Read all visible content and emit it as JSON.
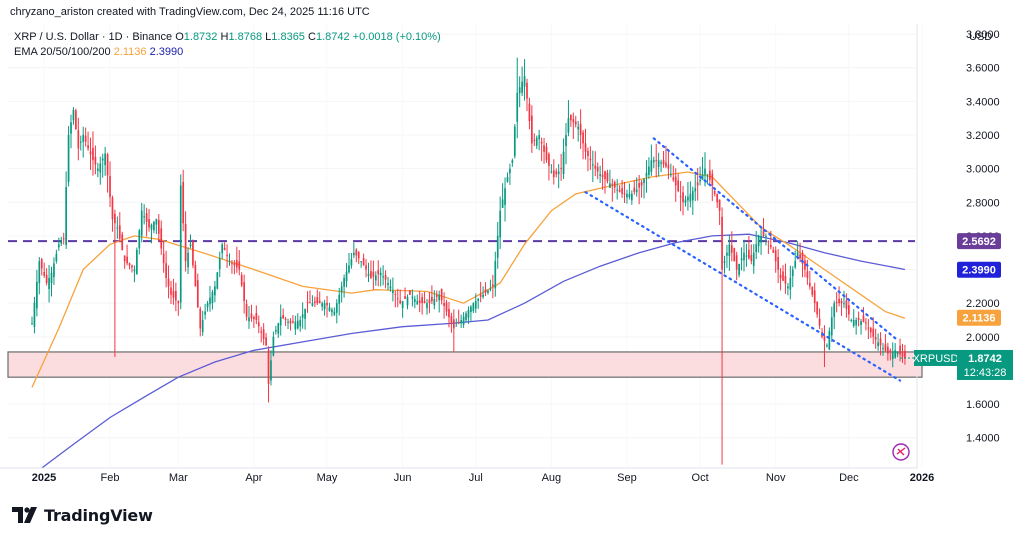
{
  "header": {
    "credit": "chryzano_ariston created with TradingView.com, Dec 24, 2025 11:16 UTC"
  },
  "legend": {
    "symbol": "XRP / U.S. Dollar · 1D · Binance",
    "open_label": "O",
    "open": "1.8732",
    "high_label": "H",
    "high": "1.8768",
    "low_label": "L",
    "low": "1.8365",
    "close_label": "C",
    "close": "1.8742",
    "change": "+0.0018 (+0.10%)",
    "ema_label": "EMA 20/50/100/200",
    "ema_a": "2.1136",
    "ema_b": "2.3990"
  },
  "footer": {
    "brand": "TradingView"
  },
  "colors": {
    "up": "#089981",
    "down": "#f23645",
    "ema_fast": "#f7a23c",
    "ema_slow": "#5b5bd6",
    "resistance": "#5b3aa5",
    "support_fill": "#fbdde0",
    "channel": "#2962ff",
    "price_box": "#089981",
    "ema_fast_box": "#f7a23c",
    "ema_slow_box": "#2121d9",
    "resistance_box": "#6a3d9a"
  },
  "chart_data": {
    "type": "candlestick",
    "currency": "USD",
    "y_ticks": [
      "1.4000",
      "1.6000",
      "2.0000",
      "2.2000",
      "2.4000",
      "2.6000",
      "2.8000",
      "3.0000",
      "3.2000",
      "3.4000",
      "3.6000",
      "3.8000"
    ],
    "x_ticks": [
      "2025",
      "Feb",
      "Mar",
      "Apr",
      "May",
      "Jun",
      "Jul",
      "Aug",
      "Sep",
      "Oct",
      "Nov",
      "Dec",
      "2026"
    ],
    "ylim": [
      1.22,
      3.86
    ],
    "last_price": {
      "label": "XRPUSD",
      "value": "1.8742",
      "countdown": "12:43:28"
    },
    "resistance": {
      "value": 2.5692,
      "label": "2.5692"
    },
    "ema_fast_last": {
      "value": 2.1136,
      "label": "2.1136"
    },
    "ema_slow_last": {
      "value": 2.399,
      "label": "2.3990"
    },
    "support_zone": [
      1.76,
      1.91
    ],
    "descending_channel": {
      "upper": [
        [
          "2025-09-12",
          3.18
        ],
        [
          "2025-12-21",
          1.98
        ]
      ],
      "lower": [
        [
          "2025-08-15",
          2.86
        ],
        [
          "2025-12-22",
          1.74
        ]
      ]
    },
    "price_path": [
      [
        "2024-12-31",
        2.08
      ],
      [
        "2025-01-03",
        2.45
      ],
      [
        "2025-01-06",
        2.32
      ],
      [
        "2025-01-08",
        2.38
      ],
      [
        "2025-01-11",
        2.55
      ],
      [
        "2025-01-13",
        2.58
      ],
      [
        "2025-01-15",
        3.2
      ],
      [
        "2025-01-17",
        3.35
      ],
      [
        "2025-01-19",
        3.12
      ],
      [
        "2025-01-21",
        3.2
      ],
      [
        "2025-01-23",
        3.12
      ],
      [
        "2025-01-25",
        3.05
      ],
      [
        "2025-01-27",
        3.0
      ],
      [
        "2025-01-30",
        3.09
      ],
      [
        "2025-02-02",
        2.7
      ],
      [
        "2025-02-04",
        2.65
      ],
      [
        "2025-02-07",
        2.45
      ],
      [
        "2025-02-11",
        2.4
      ],
      [
        "2025-02-14",
        2.75
      ],
      [
        "2025-02-17",
        2.65
      ],
      [
        "2025-02-20",
        2.7
      ],
      [
        "2025-02-24",
        2.35
      ],
      [
        "2025-02-26",
        2.25
      ],
      [
        "2025-03-01",
        2.2
      ],
      [
        "2025-03-02",
        2.9
      ],
      [
        "2025-03-04",
        2.45
      ],
      [
        "2025-03-06",
        2.55
      ],
      [
        "2025-03-10",
        2.05
      ],
      [
        "2025-03-13",
        2.2
      ],
      [
        "2025-03-16",
        2.3
      ],
      [
        "2025-03-19",
        2.55
      ],
      [
        "2025-03-22",
        2.45
      ],
      [
        "2025-03-26",
        2.4
      ],
      [
        "2025-03-29",
        2.12
      ],
      [
        "2025-04-02",
        2.1
      ],
      [
        "2025-04-06",
        1.95
      ],
      [
        "2025-04-07",
        1.72
      ],
      [
        "2025-04-09",
        2.0
      ],
      [
        "2025-04-12",
        2.12
      ],
      [
        "2025-04-16",
        2.08
      ],
      [
        "2025-04-20",
        2.1
      ],
      [
        "2025-04-23",
        2.2
      ],
      [
        "2025-04-26",
        2.2
      ],
      [
        "2025-04-30",
        2.2
      ],
      [
        "2025-05-04",
        2.15
      ],
      [
        "2025-05-08",
        2.35
      ],
      [
        "2025-05-12",
        2.5
      ],
      [
        "2025-05-15",
        2.45
      ],
      [
        "2025-05-19",
        2.35
      ],
      [
        "2025-05-23",
        2.38
      ],
      [
        "2025-05-27",
        2.3
      ],
      [
        "2025-05-31",
        2.2
      ],
      [
        "2025-06-04",
        2.25
      ],
      [
        "2025-06-08",
        2.2
      ],
      [
        "2025-06-12",
        2.2
      ],
      [
        "2025-06-16",
        2.25
      ],
      [
        "2025-06-19",
        2.15
      ],
      [
        "2025-06-22",
        2.05
      ],
      [
        "2025-06-25",
        2.1
      ],
      [
        "2025-06-30",
        2.2
      ],
      [
        "2025-07-04",
        2.25
      ],
      [
        "2025-07-08",
        2.3
      ],
      [
        "2025-07-11",
        2.75
      ],
      [
        "2025-07-14",
        2.95
      ],
      [
        "2025-07-16",
        3.05
      ],
      [
        "2025-07-18",
        3.45
      ],
      [
        "2025-07-21",
        3.55
      ],
      [
        "2025-07-24",
        3.15
      ],
      [
        "2025-07-27",
        3.2
      ],
      [
        "2025-07-30",
        3.05
      ],
      [
        "2025-08-02",
        2.95
      ],
      [
        "2025-08-05",
        3.0
      ],
      [
        "2025-08-08",
        3.3
      ],
      [
        "2025-08-12",
        3.25
      ],
      [
        "2025-08-15",
        3.1
      ],
      [
        "2025-08-19",
        3.0
      ],
      [
        "2025-08-22",
        2.95
      ],
      [
        "2025-08-26",
        2.9
      ],
      [
        "2025-08-30",
        2.85
      ],
      [
        "2025-09-03",
        2.85
      ],
      [
        "2025-09-07",
        2.9
      ],
      [
        "2025-09-11",
        3.05
      ],
      [
        "2025-09-14",
        3.05
      ],
      [
        "2025-09-18",
        3.0
      ],
      [
        "2025-09-21",
        2.9
      ],
      [
        "2025-09-24",
        2.8
      ],
      [
        "2025-09-27",
        2.85
      ],
      [
        "2025-09-30",
        2.9
      ],
      [
        "2025-10-03",
        3.0
      ],
      [
        "2025-10-06",
        2.9
      ],
      [
        "2025-10-09",
        2.75
      ],
      [
        "2025-10-10",
        2.4
      ],
      [
        "2025-10-13",
        2.55
      ],
      [
        "2025-10-16",
        2.4
      ],
      [
        "2025-10-19",
        2.5
      ],
      [
        "2025-10-22",
        2.45
      ],
      [
        "2025-10-25",
        2.6
      ],
      [
        "2025-10-28",
        2.6
      ],
      [
        "2025-10-31",
        2.5
      ],
      [
        "2025-11-03",
        2.35
      ],
      [
        "2025-11-06",
        2.3
      ],
      [
        "2025-11-10",
        2.5
      ],
      [
        "2025-11-13",
        2.4
      ],
      [
        "2025-11-17",
        2.2
      ],
      [
        "2025-11-20",
        2.0
      ],
      [
        "2025-11-22",
        1.95
      ],
      [
        "2025-11-25",
        2.2
      ],
      [
        "2025-11-29",
        2.2
      ],
      [
        "2025-12-02",
        2.1
      ],
      [
        "2025-12-05",
        2.1
      ],
      [
        "2025-12-08",
        2.08
      ],
      [
        "2025-12-11",
        2.0
      ],
      [
        "2025-12-14",
        1.95
      ],
      [
        "2025-12-17",
        1.9
      ],
      [
        "2025-12-20",
        1.92
      ],
      [
        "2025-12-24",
        1.87
      ]
    ],
    "wicks": [
      {
        "date": "2025-02-03",
        "low": 1.88
      },
      {
        "date": "2025-04-07",
        "low": 1.61
      },
      {
        "date": "2025-06-22",
        "low": 1.91
      },
      {
        "date": "2025-07-18",
        "high": 3.66
      },
      {
        "date": "2025-10-10",
        "low": 1.24
      },
      {
        "date": "2025-11-21",
        "low": 1.82
      }
    ],
    "ema_fast_path": [
      [
        "2024-12-31",
        1.7
      ],
      [
        "2025-01-11",
        2.05
      ],
      [
        "2025-01-21",
        2.4
      ],
      [
        "2025-02-01",
        2.55
      ],
      [
        "2025-02-11",
        2.6
      ],
      [
        "2025-02-21",
        2.58
      ],
      [
        "2025-03-11",
        2.5
      ],
      [
        "2025-04-01",
        2.4
      ],
      [
        "2025-04-21",
        2.3
      ],
      [
        "2025-05-11",
        2.26
      ],
      [
        "2025-05-21",
        2.28
      ],
      [
        "2025-06-11",
        2.27
      ],
      [
        "2025-06-26",
        2.2
      ],
      [
        "2025-07-11",
        2.32
      ],
      [
        "2025-07-21",
        2.55
      ],
      [
        "2025-08-01",
        2.75
      ],
      [
        "2025-08-11",
        2.85
      ],
      [
        "2025-08-26",
        2.9
      ],
      [
        "2025-09-11",
        2.95
      ],
      [
        "2025-09-26",
        2.98
      ],
      [
        "2025-10-06",
        2.95
      ],
      [
        "2025-10-16",
        2.8
      ],
      [
        "2025-10-26",
        2.65
      ],
      [
        "2025-11-06",
        2.55
      ],
      [
        "2025-11-16",
        2.45
      ],
      [
        "2025-11-26",
        2.35
      ],
      [
        "2025-12-06",
        2.25
      ],
      [
        "2025-12-16",
        2.15
      ],
      [
        "2025-12-24",
        2.11
      ]
    ],
    "ema_slow_path": [
      [
        "2025-01-04",
        1.22
      ],
      [
        "2025-01-16",
        1.35
      ],
      [
        "2025-02-01",
        1.52
      ],
      [
        "2025-02-16",
        1.65
      ],
      [
        "2025-03-01",
        1.76
      ],
      [
        "2025-03-16",
        1.85
      ],
      [
        "2025-04-01",
        1.92
      ],
      [
        "2025-04-21",
        1.97
      ],
      [
        "2025-05-11",
        2.02
      ],
      [
        "2025-06-01",
        2.06
      ],
      [
        "2025-06-21",
        2.08
      ],
      [
        "2025-07-06",
        2.1
      ],
      [
        "2025-07-21",
        2.2
      ],
      [
        "2025-08-06",
        2.33
      ],
      [
        "2025-08-21",
        2.42
      ],
      [
        "2025-09-06",
        2.5
      ],
      [
        "2025-09-21",
        2.56
      ],
      [
        "2025-10-06",
        2.6
      ],
      [
        "2025-10-21",
        2.61
      ],
      [
        "2025-11-06",
        2.56
      ],
      [
        "2025-11-21",
        2.5
      ],
      [
        "2025-12-06",
        2.45
      ],
      [
        "2025-12-24",
        2.4
      ]
    ]
  }
}
